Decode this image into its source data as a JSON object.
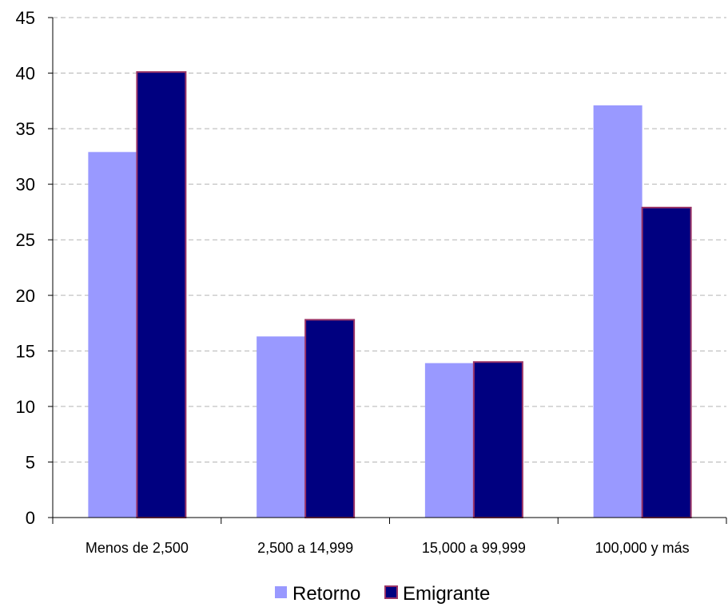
{
  "chart_data": {
    "type": "bar",
    "categories": [
      "Menos de 2,500",
      "2,500 a 14,999",
      "15,000 a 99,999",
      "100,000 y más"
    ],
    "series": [
      {
        "name": "Retorno",
        "values": [
          32.9,
          16.3,
          13.9,
          37.1
        ],
        "color": "#9999ff"
      },
      {
        "name": "Emigrante",
        "values": [
          40.1,
          17.8,
          14.0,
          27.9
        ],
        "color": "#000080",
        "border": "#993366"
      }
    ],
    "ylim": [
      0,
      45
    ],
    "yticks": [
      "0",
      "5",
      "10",
      "15",
      "20",
      "25",
      "30",
      "35",
      "40",
      "45"
    ],
    "grid": true,
    "legend": "bottom",
    "title": "",
    "xlabel": "",
    "ylabel": ""
  }
}
